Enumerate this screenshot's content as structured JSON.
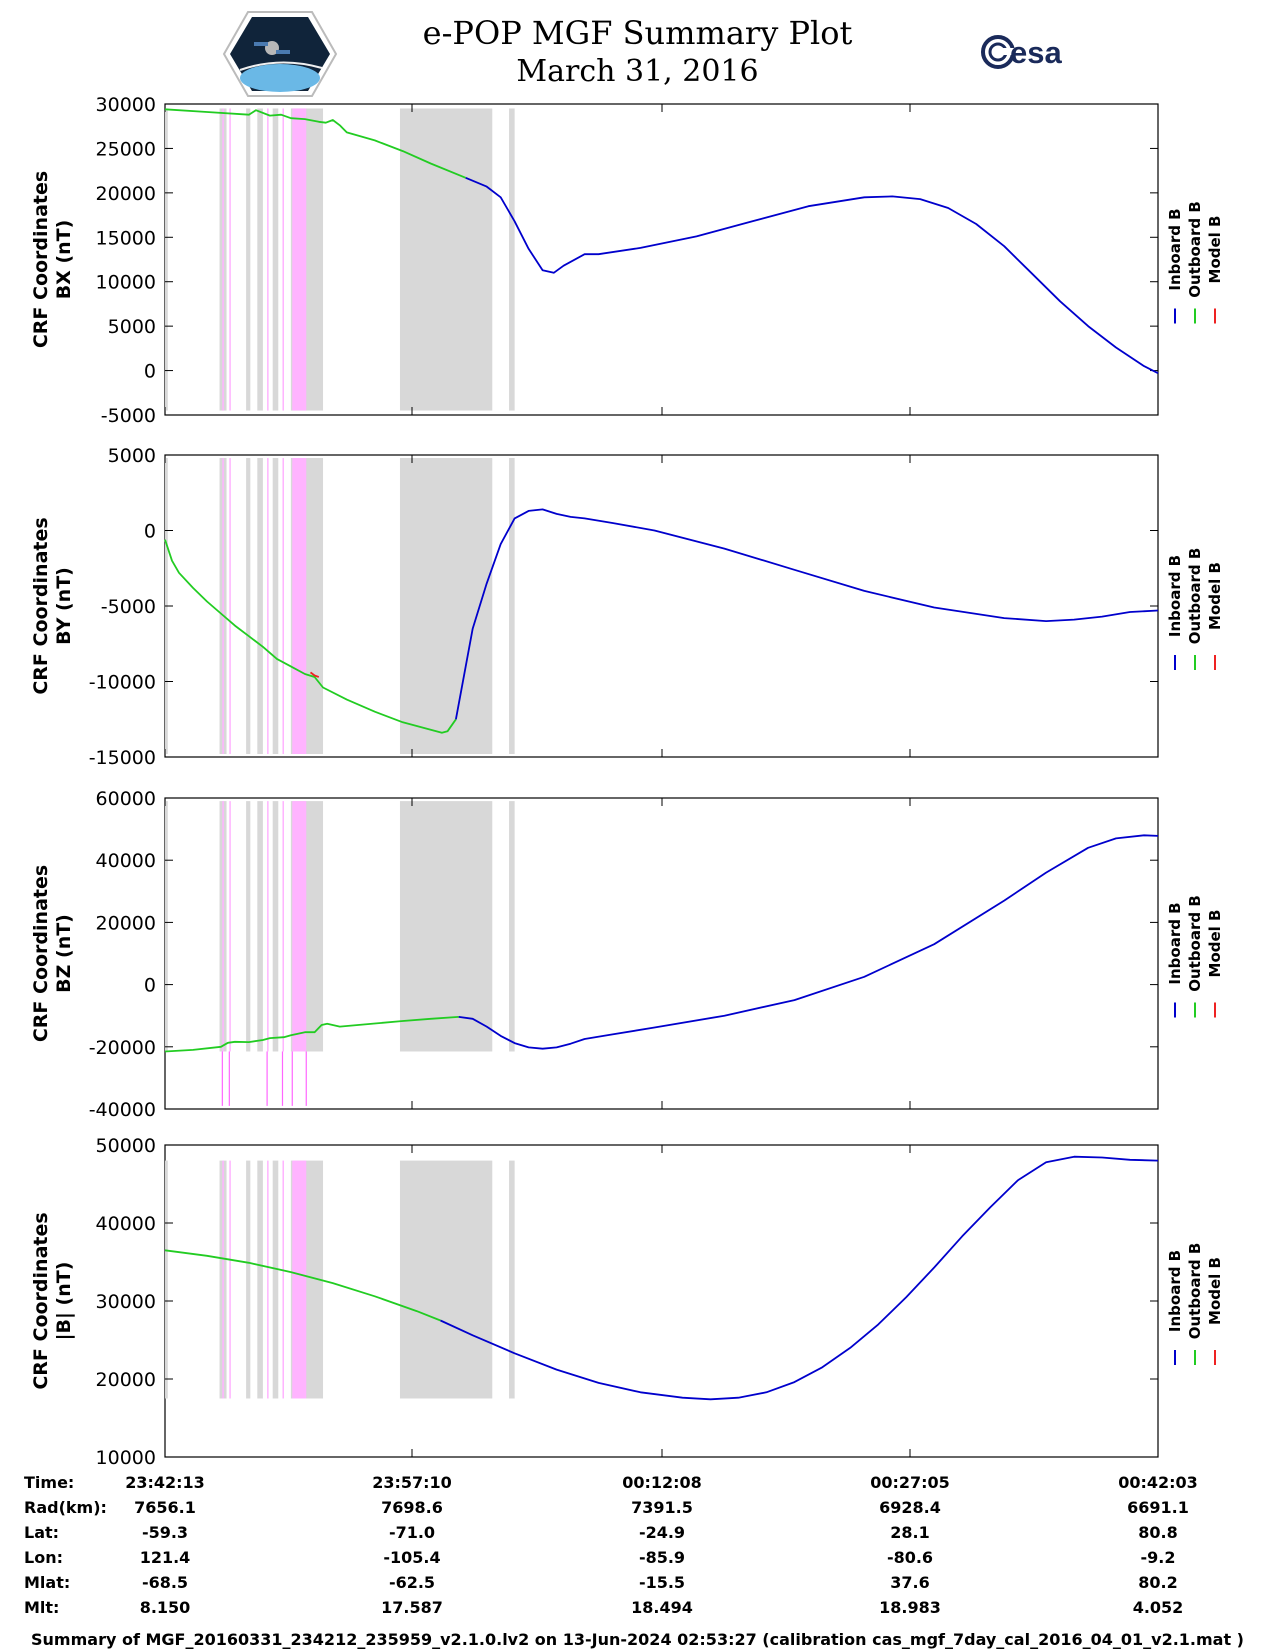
{
  "header": {
    "title": "e-POP MGF Summary Plot",
    "date": "March 31, 2016",
    "left_logo": "cassiope-mission-patch",
    "right_logo": "esa-logo",
    "right_logo_text": "esa"
  },
  "chart_data": [
    {
      "type": "line",
      "ylabel": [
        "CRF Coordinates",
        "BX (nT)"
      ],
      "ylim": [
        -5000,
        30000
      ],
      "yticks": [
        30000,
        25000,
        20000,
        15000,
        10000,
        5000,
        0,
        -5000
      ],
      "legend": [
        "Inboard B",
        "Outboard B",
        "Model B"
      ],
      "series": [
        {
          "name": "Outboard B",
          "color": "#22cc22",
          "points": [
            [
              0,
              29400
            ],
            [
              3,
              29100
            ],
            [
              6,
              28800
            ],
            [
              6.5,
              29300
            ],
            [
              7.5,
              28700
            ],
            [
              8.3,
              28800
            ],
            [
              9,
              28400
            ],
            [
              10,
              28300
            ],
            [
              11,
              28000
            ],
            [
              11.5,
              27900
            ],
            [
              12,
              28200
            ],
            [
              12.5,
              27600
            ],
            [
              13,
              26800
            ],
            [
              15,
              25900
            ],
            [
              17,
              24700
            ],
            [
              19,
              23300
            ],
            [
              21.5,
              21700
            ]
          ]
        },
        {
          "name": "Inboard B",
          "color": "#0000cc",
          "points": [
            [
              21.5,
              21700
            ],
            [
              23,
              20700
            ],
            [
              24,
              19500
            ],
            [
              25,
              16800
            ],
            [
              26,
              13700
            ],
            [
              27,
              11300
            ],
            [
              27.8,
              11000
            ],
            [
              28.5,
              11800
            ],
            [
              30,
              13100
            ],
            [
              31,
              13100
            ],
            [
              34,
              13800
            ],
            [
              38,
              15100
            ],
            [
              42,
              16800
            ],
            [
              46,
              18500
            ],
            [
              50,
              19500
            ],
            [
              52,
              19600
            ],
            [
              54,
              19300
            ],
            [
              56,
              18300
            ],
            [
              58,
              16500
            ],
            [
              60,
              14000
            ],
            [
              62,
              10900
            ],
            [
              64,
              7800
            ],
            [
              66,
              5000
            ],
            [
              68,
              2600
            ],
            [
              70,
              500
            ],
            [
              71,
              -300
            ]
          ]
        }
      ],
      "gray_bands": [
        [
          0,
          0.2
        ],
        [
          3.9,
          4.4
        ],
        [
          5.8,
          6.1
        ],
        [
          6.6,
          7.0
        ],
        [
          7.7,
          8.1
        ],
        [
          9.0,
          11.3
        ],
        [
          16.8,
          23.4
        ],
        [
          24.6,
          25.0
        ]
      ],
      "pink_bands": [
        [
          4.1,
          4.2
        ],
        [
          4.6,
          4.7
        ],
        [
          7.3,
          7.4
        ],
        [
          8.4,
          8.5
        ],
        [
          9.1,
          10.1
        ]
      ],
      "band_range": [
        -4500,
        29500
      ]
    },
    {
      "type": "line",
      "ylabel": [
        "CRF Coordinates",
        "BY (nT)"
      ],
      "ylim": [
        -15000,
        5000
      ],
      "yticks": [
        5000,
        0,
        -5000,
        -10000,
        -15000
      ],
      "legend": [
        "Inboard B",
        "Outboard B",
        "Model B"
      ],
      "series": [
        {
          "name": "Outboard B",
          "color": "#22cc22",
          "points": [
            [
              0,
              -600
            ],
            [
              0.5,
              -2000
            ],
            [
              1,
              -2800
            ],
            [
              2,
              -3800
            ],
            [
              3,
              -4700
            ],
            [
              4,
              -5500
            ],
            [
              5,
              -6300
            ],
            [
              6,
              -7000
            ],
            [
              7,
              -7700
            ],
            [
              8,
              -8500
            ],
            [
              9,
              -9000
            ],
            [
              10,
              -9500
            ],
            [
              10.7,
              -9700
            ],
            [
              11.3,
              -10400
            ],
            [
              13,
              -11200
            ],
            [
              15,
              -12000
            ],
            [
              17,
              -12700
            ],
            [
              19,
              -13200
            ],
            [
              19.8,
              -13400
            ],
            [
              20.2,
              -13300
            ],
            [
              20.8,
              -12500
            ]
          ]
        },
        {
          "name": "Inboard B",
          "color": "#0000cc",
          "points": [
            [
              20.8,
              -12500
            ],
            [
              21.5,
              -9000
            ],
            [
              22,
              -6500
            ],
            [
              23,
              -3500
            ],
            [
              24,
              -900
            ],
            [
              25,
              800
            ],
            [
              26,
              1300
            ],
            [
              27,
              1400
            ],
            [
              28,
              1100
            ],
            [
              29,
              900
            ],
            [
              30,
              800
            ],
            [
              32,
              500
            ],
            [
              35,
              0
            ],
            [
              40,
              -1200
            ],
            [
              45,
              -2600
            ],
            [
              50,
              -4000
            ],
            [
              55,
              -5100
            ],
            [
              60,
              -5800
            ],
            [
              63,
              -6000
            ],
            [
              65,
              -5900
            ],
            [
              67,
              -5700
            ],
            [
              69,
              -5400
            ],
            [
              71,
              -5300
            ]
          ]
        },
        {
          "name": "Model B",
          "color": "#ee2222",
          "points": [
            [
              10.4,
              -9400
            ],
            [
              10.7,
              -9600
            ],
            [
              11,
              -9700
            ]
          ]
        }
      ],
      "gray_bands": [
        [
          0,
          0.2
        ],
        [
          3.9,
          4.4
        ],
        [
          5.8,
          6.1
        ],
        [
          6.6,
          7.0
        ],
        [
          7.7,
          8.1
        ],
        [
          9.0,
          11.3
        ],
        [
          16.8,
          23.4
        ],
        [
          24.6,
          25.0
        ]
      ],
      "pink_bands": [
        [
          4.1,
          4.2
        ],
        [
          4.6,
          4.7
        ],
        [
          7.3,
          7.4
        ],
        [
          8.4,
          8.5
        ],
        [
          9.1,
          10.1
        ]
      ],
      "band_range": [
        -14800,
        4800
      ]
    },
    {
      "type": "line",
      "ylabel": [
        "CRF Coordinates",
        "BZ (nT)"
      ],
      "ylim": [
        -40000,
        60000
      ],
      "yticks": [
        60000,
        40000,
        20000,
        0,
        -20000,
        -40000
      ],
      "legend": [
        "Inboard B",
        "Outboard B",
        "Model B"
      ],
      "series": [
        {
          "name": "Outboard B",
          "color": "#22cc22",
          "points": [
            [
              0,
              -21500
            ],
            [
              2,
              -21000
            ],
            [
              4,
              -20000
            ],
            [
              4.5,
              -18700
            ],
            [
              5,
              -18400
            ],
            [
              6,
              -18500
            ],
            [
              7,
              -17800
            ],
            [
              7.5,
              -17200
            ],
            [
              8.5,
              -16900
            ],
            [
              9,
              -16300
            ],
            [
              10,
              -15300
            ],
            [
              10.7,
              -15300
            ],
            [
              11.2,
              -13000
            ],
            [
              11.6,
              -12600
            ],
            [
              12.5,
              -13500
            ],
            [
              15,
              -12500
            ],
            [
              17,
              -11700
            ],
            [
              19,
              -11000
            ],
            [
              21,
              -10400
            ]
          ]
        },
        {
          "name": "Inboard B",
          "color": "#0000cc",
          "points": [
            [
              21,
              -10400
            ],
            [
              22,
              -11000
            ],
            [
              23,
              -13500
            ],
            [
              24,
              -16500
            ],
            [
              25,
              -18800
            ],
            [
              26,
              -20200
            ],
            [
              27,
              -20600
            ],
            [
              28,
              -20200
            ],
            [
              29,
              -19000
            ],
            [
              30,
              -17500
            ],
            [
              32,
              -16000
            ],
            [
              35,
              -13800
            ],
            [
              40,
              -10000
            ],
            [
              45,
              -5000
            ],
            [
              50,
              2500
            ],
            [
              55,
              13000
            ],
            [
              60,
              27000
            ],
            [
              63,
              36000
            ],
            [
              66,
              44000
            ],
            [
              68,
              47000
            ],
            [
              70,
              48000
            ],
            [
              71,
              47800
            ]
          ]
        }
      ],
      "gray_bands": [
        [
          0,
          0.2
        ],
        [
          3.9,
          4.4
        ],
        [
          5.8,
          6.1
        ],
        [
          6.6,
          7.0
        ],
        [
          7.7,
          8.1
        ],
        [
          9.0,
          11.3
        ],
        [
          16.8,
          23.4
        ],
        [
          24.6,
          25.0
        ]
      ],
      "pink_bands": [
        [
          4.1,
          4.2
        ],
        [
          4.6,
          4.7
        ],
        [
          7.3,
          7.4
        ],
        [
          8.4,
          8.5
        ],
        [
          9.1,
          10.1
        ]
      ],
      "band_range": [
        -21500,
        59000
      ],
      "pink_spikes": [
        [
          4.1,
          -39000
        ],
        [
          4.6,
          -39000
        ],
        [
          7.3,
          -39000
        ],
        [
          8.4,
          -39000
        ],
        [
          9.1,
          -39000
        ],
        [
          10.1,
          -39000
        ]
      ]
    },
    {
      "type": "line",
      "ylabel": [
        "CRF Coordinates",
        "|B| (nT)"
      ],
      "ylim": [
        10000,
        50000
      ],
      "yticks": [
        50000,
        40000,
        30000,
        20000,
        10000
      ],
      "legend": [
        "Inboard B",
        "Outboard B",
        "Model B"
      ],
      "series": [
        {
          "name": "Outboard B",
          "color": "#22cc22",
          "points": [
            [
              0,
              36500
            ],
            [
              3,
              35800
            ],
            [
              6,
              34900
            ],
            [
              9,
              33700
            ],
            [
              12,
              32300
            ],
            [
              15,
              30600
            ],
            [
              18,
              28700
            ],
            [
              19.7,
              27500
            ]
          ]
        },
        {
          "name": "Inboard B",
          "color": "#0000cc",
          "points": [
            [
              19.7,
              27500
            ],
            [
              22,
              25600
            ],
            [
              25,
              23300
            ],
            [
              28,
              21200
            ],
            [
              31,
              19500
            ],
            [
              34,
              18300
            ],
            [
              37,
              17600
            ],
            [
              39,
              17400
            ],
            [
              41,
              17600
            ],
            [
              43,
              18300
            ],
            [
              45,
              19600
            ],
            [
              47,
              21500
            ],
            [
              49,
              24000
            ],
            [
              51,
              27000
            ],
            [
              53,
              30500
            ],
            [
              55,
              34300
            ],
            [
              57,
              38300
            ],
            [
              59,
              42000
            ],
            [
              61,
              45500
            ],
            [
              63,
              47800
            ],
            [
              65,
              48500
            ],
            [
              67,
              48400
            ],
            [
              69,
              48100
            ],
            [
              71,
              48000
            ]
          ]
        }
      ],
      "gray_bands": [
        [
          0,
          0.2
        ],
        [
          3.9,
          4.4
        ],
        [
          5.8,
          6.1
        ],
        [
          6.6,
          7.0
        ],
        [
          7.7,
          8.1
        ],
        [
          9.0,
          11.3
        ],
        [
          16.8,
          23.4
        ],
        [
          24.6,
          25.0
        ]
      ],
      "pink_bands": [
        [
          4.1,
          4.2
        ],
        [
          4.6,
          4.7
        ],
        [
          7.3,
          7.4
        ],
        [
          8.4,
          8.5
        ],
        [
          9.1,
          10.1
        ]
      ],
      "band_range": [
        17500,
        48000
      ]
    }
  ],
  "x_axis": {
    "range_min": [
      0,
      71
    ],
    "tick_minutes": [
      0,
      17.93,
      35.9,
      53.87,
      71.83
    ]
  },
  "ephemeris": {
    "labels": [
      "Time:",
      "Rad(km):",
      "Lat:",
      "Lon:",
      "Mlat:",
      "Mlt:"
    ],
    "columns": [
      [
        "23:42:13",
        "7656.1",
        "-59.3",
        "121.4",
        "-68.5",
        "8.150"
      ],
      [
        "23:57:10",
        "7698.6",
        "-71.0",
        "-105.4",
        "-62.5",
        "17.587"
      ],
      [
        "00:12:08",
        "7391.5",
        "-24.9",
        "-85.9",
        "-15.5",
        "18.494"
      ],
      [
        "00:27:05",
        "6928.4",
        "28.1",
        "-80.6",
        "37.6",
        "18.983"
      ],
      [
        "00:42:03",
        "6691.1",
        "80.8",
        "-9.2",
        "80.2",
        "4.052"
      ]
    ]
  },
  "footer": "Summary of MGF_20160331_234212_235959_v2.1.0.lv2 on 13-Jun-2024 02:53:27 (calibration cas_mgf_7day_cal_2016_04_01_v2.1.mat )",
  "colors": {
    "inboard": "#0000cc",
    "outboard": "#22cc22",
    "model": "#ee2222",
    "gray_band": "#d8d8d8",
    "pink_band": "#ffb4ff"
  }
}
